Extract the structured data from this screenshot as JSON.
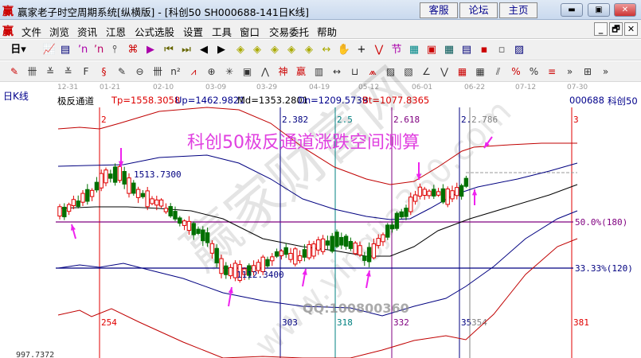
{
  "window": {
    "title": "赢家老子时空周期系统[纵横版] - [科创50   SH000688-141日K线]",
    "logo": "赢",
    "links": [
      "客服",
      "论坛",
      "主页"
    ],
    "controls": [
      "minimize",
      "maximize",
      "close"
    ]
  },
  "menu": {
    "logo": "赢",
    "items": [
      "文件",
      "浏览",
      "资讯",
      "江恩",
      "公式选股",
      "设置",
      "工具",
      "窗口",
      "交易委托",
      "帮助"
    ],
    "mdi": [
      "_",
      "🗗",
      "✕"
    ]
  },
  "toolbar1": {
    "period": "日",
    "icons": [
      "chart-icon",
      "notes-icon",
      "wave3-icon",
      "wave9-icon",
      "candle-icon",
      "cycle-icon",
      "flag-icon",
      "first-icon",
      "last-icon",
      "left-icon",
      "right-icon",
      "arrow-left-icon",
      "arrow-right-icon",
      "arrow-lr-icon",
      "expand-icon",
      "collapse-icon",
      "zoom-icon",
      "hand-icon",
      "crosshair-icon",
      "line-icon",
      "node-icon",
      "grid-icon",
      "calendar-icon",
      "calculator-icon",
      "report-icon",
      "save-icon",
      "network-icon",
      "print-icon"
    ]
  },
  "toolbar2": {
    "icons": [
      "pen-icon",
      "lines-icon",
      "gold-icon",
      "gold2-icon",
      "fib-icon",
      "spiral-icon",
      "eraser-icon",
      "circle-icon",
      "ticks-icon",
      "n2-icon",
      "angle-icon",
      "target-icon",
      "star-icon",
      "square-icon",
      "wave-icon",
      "shen-icon",
      "ying-icon",
      "ruler-icon",
      "span-icon",
      "box-icon",
      "fan-icon",
      "diamond-icon",
      "gann-icon",
      "angle2-icon",
      "zigzag-icon",
      "gridbox-icon",
      "gridbox2-icon",
      "parallel-icon",
      "percent-red-icon",
      "percent-icon",
      "percent-lines-icon",
      "more-icon",
      "table-icon",
      "more2-icon"
    ]
  },
  "ruler": {
    "dates": [
      "12-31",
      "01-21",
      "02-10",
      "03-09",
      "03-29",
      "04-19",
      "05-12",
      "06-01",
      "06-22",
      "07-12",
      "07-30"
    ]
  },
  "panel": {
    "type": "日K线",
    "indicator": "极反通道",
    "tp": "Tp=1558.3058",
    "up": "Up=1462.9821",
    "md": "Md=1353.2801",
    "dn": "Dn=1209.5739",
    "bt": "Bt=1077.8365",
    "code": "000688",
    "name": "科创50"
  },
  "chart": {
    "headline": "科创50极反通道涨跌空间测算",
    "high_label": "1513.7300",
    "low_label": "1112.3400",
    "bottom_price": "997.7372",
    "watermark_qq": "QQ:100800360",
    "vlines": [
      {
        "top": "2",
        "bottom": "254",
        "color": "#e00000"
      },
      {
        "top": "2.382",
        "bottom": "303",
        "color": "#000080"
      },
      {
        "top": "2.5",
        "bottom": "318",
        "color": "#008080"
      },
      {
        "top": "2.618",
        "bottom": "332",
        "color": "#800080"
      },
      {
        "top": "2.",
        "bottom": "35",
        "color": "#000080"
      },
      {
        "top": "2.786",
        "bottom": "354",
        "color": "#808080"
      },
      {
        "top": "3",
        "bottom": "381",
        "color": "#e00000"
      }
    ],
    "hlines": [
      {
        "label": "50.0%(180)",
        "color": "#800080"
      },
      {
        "label": "33.33%(120)",
        "color": "#000080"
      }
    ],
    "colors": {
      "up": "#e00000",
      "down": "#007000",
      "arrow": "#ee22ee",
      "outer": "#c00000",
      "inner": "#000080",
      "mid": "#000000"
    }
  }
}
